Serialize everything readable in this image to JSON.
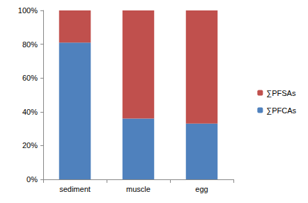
{
  "chart_data": {
    "type": "bar",
    "stacked": true,
    "grid": false,
    "legend": "right",
    "categories": [
      "sediment",
      "muscle",
      "egg"
    ],
    "series": [
      {
        "name": "∑PFCAs",
        "color": "#4f81bd",
        "values": [
          81,
          36,
          33
        ]
      },
      {
        "name": "∑PFSAs",
        "color": "#c0504d",
        "values": [
          19,
          64,
          67
        ]
      }
    ],
    "ylim": [
      0,
      100
    ],
    "yticks": [
      {
        "value": 0,
        "label": "0%"
      },
      {
        "value": 20,
        "label": "20%"
      },
      {
        "value": 40,
        "label": "40%"
      },
      {
        "value": 60,
        "label": "60%"
      },
      {
        "value": 80,
        "label": "80%"
      },
      {
        "value": 100,
        "label": "100%"
      }
    ]
  }
}
